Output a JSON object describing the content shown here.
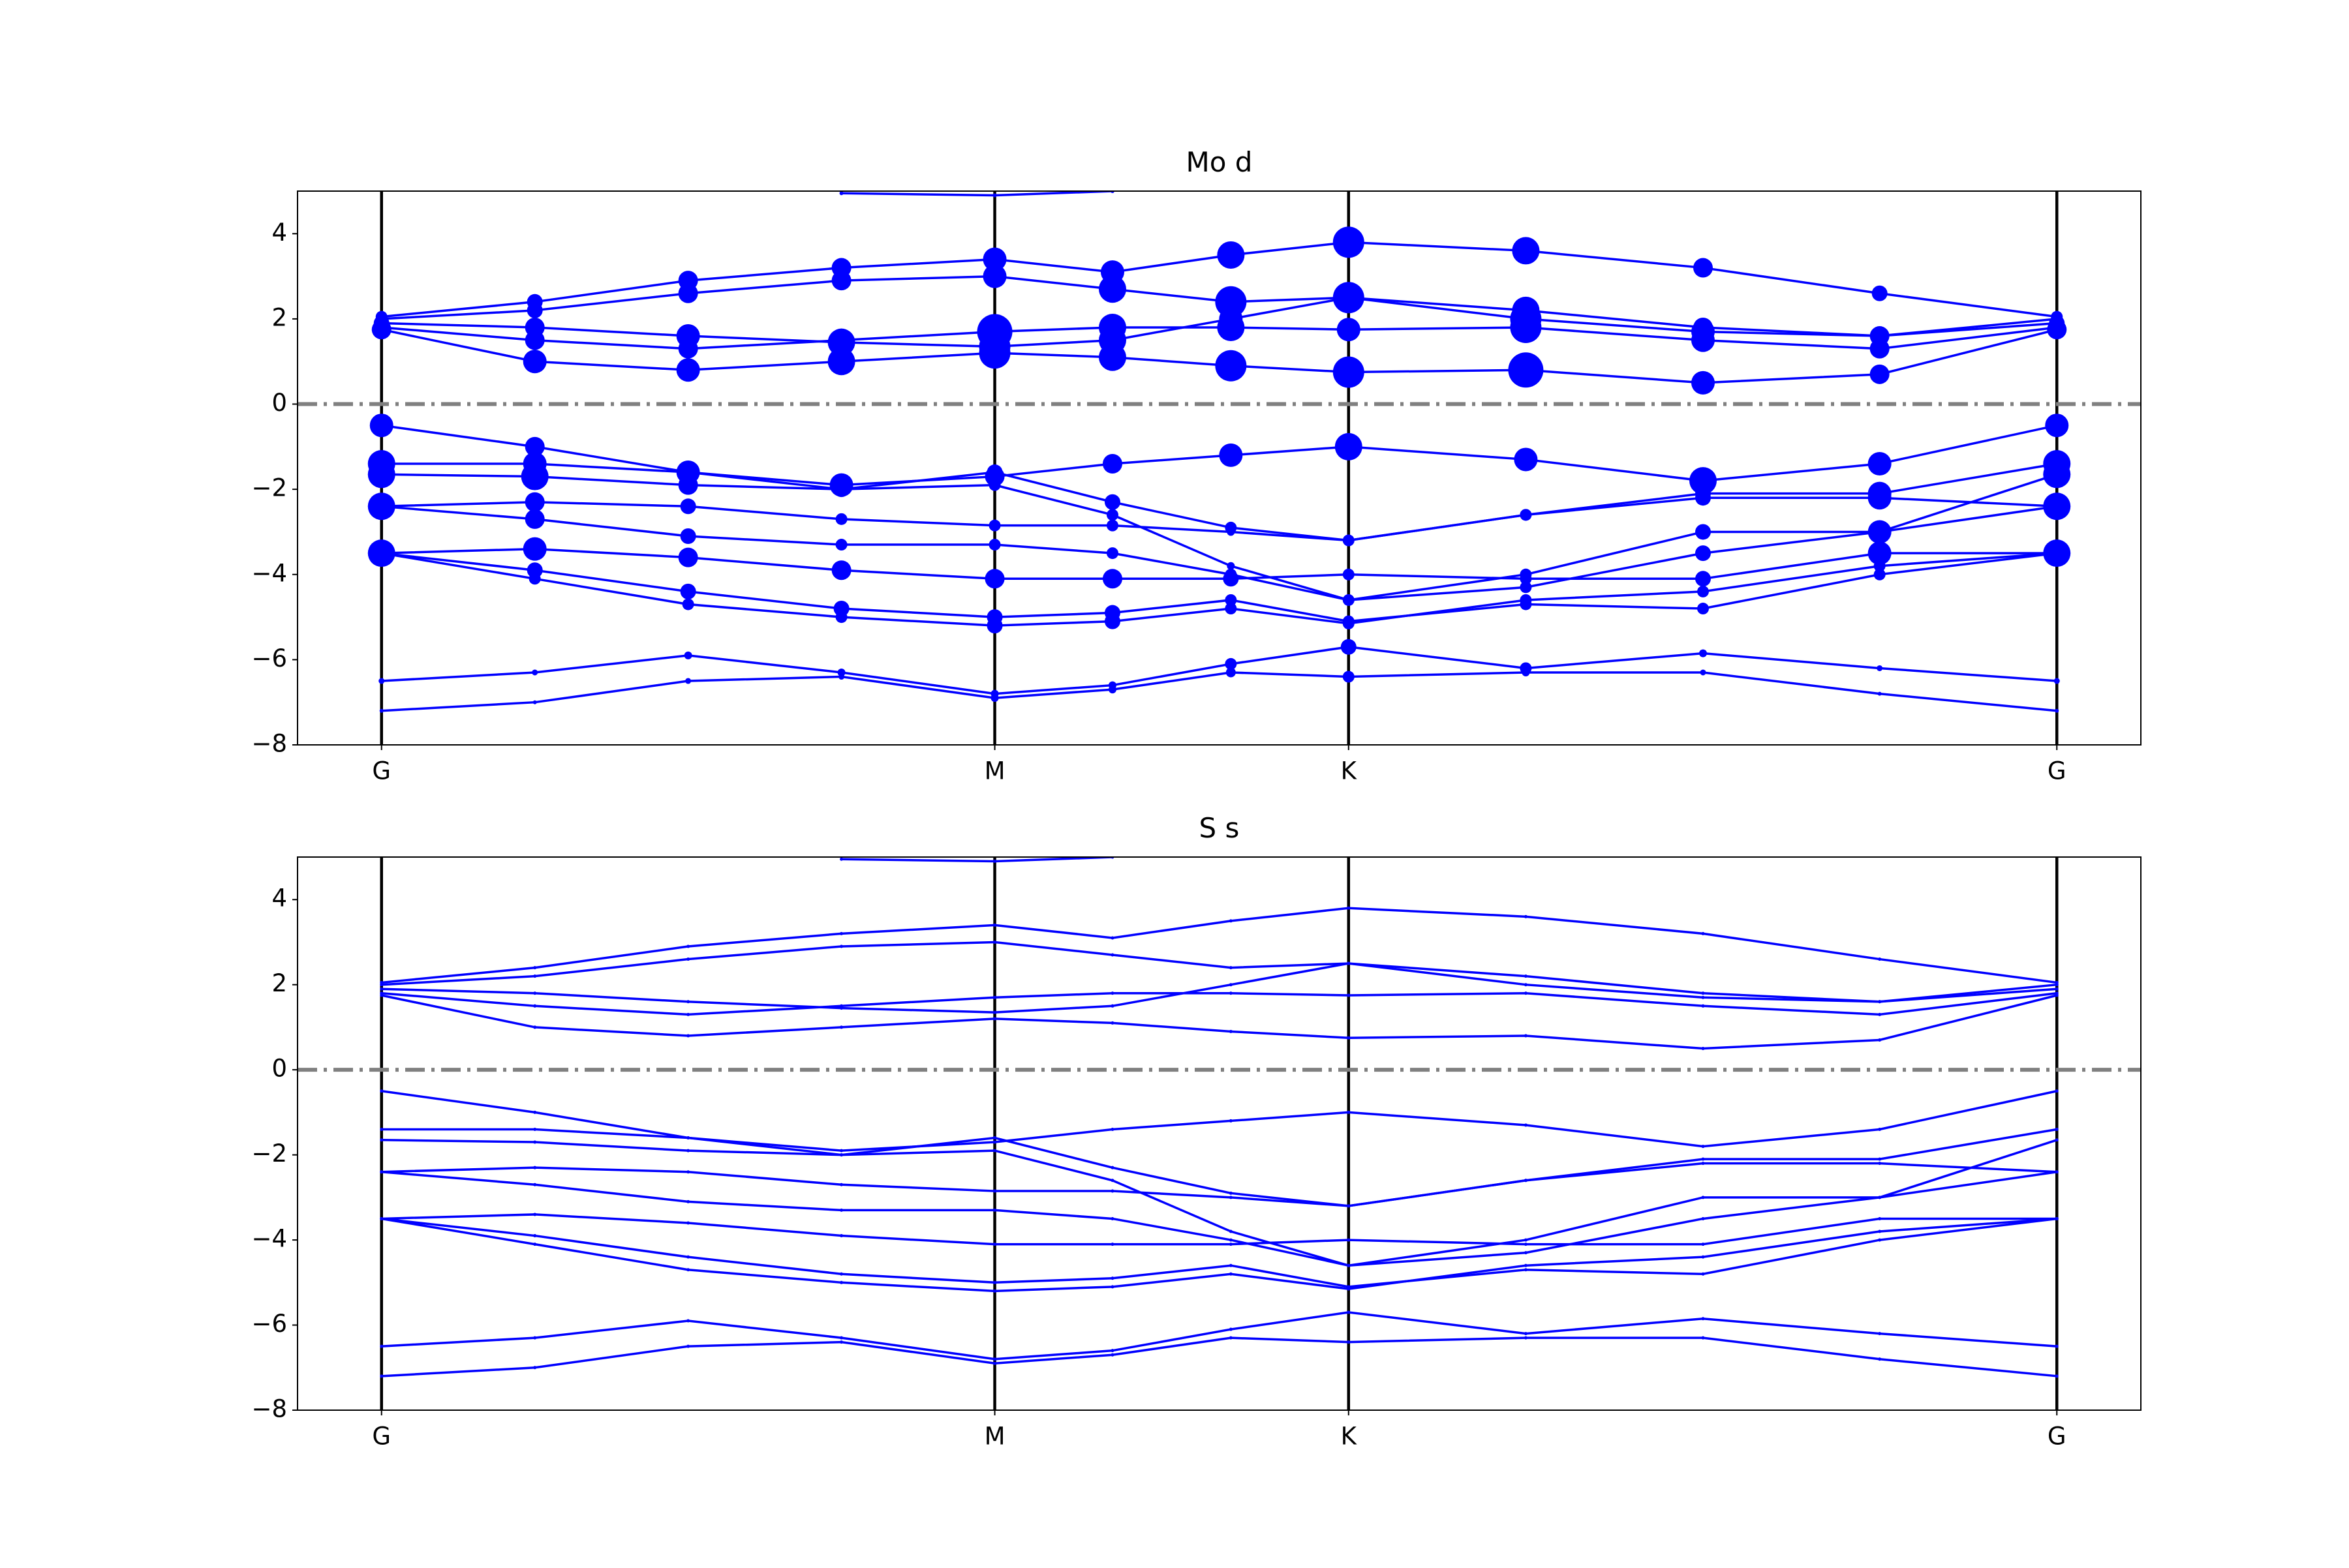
{
  "chart_data": [
    {
      "type": "band",
      "title": "Mo d",
      "color": "#0000ff",
      "x": [
        0,
        0.25,
        0.5,
        0.75,
        1.0,
        1.192,
        1.385,
        1.577,
        1.866,
        2.155,
        2.443,
        2.732
      ],
      "xlim": [
        -0.137,
        2.869
      ],
      "ylim": [
        -8,
        5
      ],
      "xticks": [
        {
          "value": 0,
          "label": "G"
        },
        {
          "value": 1.0,
          "label": "M"
        },
        {
          "value": 1.577,
          "label": "K"
        },
        {
          "value": 2.732,
          "label": "G"
        }
      ],
      "yticks": [
        {
          "value": -8,
          "label": "−8"
        },
        {
          "value": -6,
          "label": "−6"
        },
        {
          "value": -4,
          "label": "−4"
        },
        {
          "value": -2,
          "label": "−2"
        },
        0,
        2,
        4
      ],
      "hline": 0,
      "series": [
        {
          "values": [
            1.75,
            1.0,
            0.8,
            1.0,
            1.2,
            1.1,
            0.9,
            0.75,
            0.8,
            0.5,
            0.7,
            1.75
          ],
          "weights": [
            0.5,
            0.6,
            0.6,
            0.7,
            0.8,
            0.7,
            0.8,
            0.8,
            0.9,
            0.6,
            0.5,
            0.5
          ]
        },
        {
          "values": [
            1.8,
            1.5,
            1.3,
            1.5,
            1.7,
            1.8,
            1.8,
            1.75,
            1.8,
            1.5,
            1.3,
            1.8
          ],
          "weights": [
            0.4,
            0.5,
            0.5,
            0.6,
            0.9,
            0.7,
            0.7,
            0.6,
            0.8,
            0.6,
            0.5,
            0.4
          ]
        },
        {
          "values": [
            1.9,
            1.8,
            1.6,
            1.45,
            1.35,
            1.5,
            2.0,
            2.5,
            2.2,
            1.8,
            1.6,
            1.9
          ],
          "weights": [
            0.4,
            0.5,
            0.6,
            0.7,
            0.8,
            0.7,
            0.6,
            0.6,
            0.7,
            0.5,
            0.4,
            0.4
          ]
        },
        {
          "values": [
            2.0,
            2.2,
            2.6,
            2.9,
            3.0,
            2.7,
            2.4,
            2.5,
            2.0,
            1.7,
            1.6,
            2.0
          ],
          "weights": [
            0.3,
            0.4,
            0.5,
            0.5,
            0.6,
            0.7,
            0.8,
            0.8,
            0.8,
            0.6,
            0.5,
            0.3
          ]
        },
        {
          "values": [
            2.05,
            2.4,
            2.9,
            3.2,
            3.4,
            3.1,
            3.5,
            3.8,
            3.6,
            3.2,
            2.6,
            2.05
          ],
          "weights": [
            0.3,
            0.4,
            0.5,
            0.5,
            0.6,
            0.6,
            0.7,
            0.8,
            0.7,
            0.5,
            0.4,
            0.3
          ]
        },
        {
          "values": [
            null,
            null,
            null,
            4.95,
            4.9,
            5.0,
            null,
            null,
            null,
            null,
            null,
            null
          ],
          "weights": [
            null,
            null,
            null,
            0.1,
            0.1,
            0.1,
            null,
            null,
            null,
            null,
            null,
            null
          ]
        },
        {
          "values": [
            -0.5,
            -1.0,
            -1.6,
            -1.9,
            -1.7,
            -1.4,
            -1.2,
            -1.0,
            -1.3,
            -1.8,
            -1.4,
            -0.5
          ],
          "weights": [
            0.6,
            0.5,
            0.6,
            0.6,
            0.5,
            0.5,
            0.6,
            0.7,
            0.6,
            0.7,
            0.6,
            0.6
          ]
        },
        {
          "values": [
            -1.4,
            -1.4,
            -1.6,
            -2.0,
            -1.6,
            -2.3,
            -2.9,
            -3.2,
            -2.6,
            -2.1,
            -2.1,
            -1.4
          ],
          "weights": [
            0.7,
            0.6,
            0.5,
            0.4,
            0.4,
            0.4,
            0.3,
            0.3,
            0.3,
            0.4,
            0.6,
            0.7
          ]
        },
        {
          "values": [
            -1.65,
            -1.7,
            -1.9,
            -2.0,
            -1.9,
            -2.6,
            -3.8,
            -4.6,
            -4.0,
            -3.0,
            -3.0,
            -1.65
          ],
          "weights": [
            0.7,
            0.7,
            0.5,
            0.3,
            0.3,
            0.3,
            0.2,
            0.2,
            0.3,
            0.4,
            0.6,
            0.7
          ]
        },
        {
          "values": [
            -2.4,
            -2.3,
            -2.4,
            -2.7,
            -2.85,
            -2.85,
            -3.0,
            -3.2,
            -2.6,
            -2.2,
            -2.2,
            -2.4
          ],
          "weights": [
            0.7,
            0.5,
            0.4,
            0.3,
            0.3,
            0.3,
            0.2,
            0.2,
            0.3,
            0.4,
            0.6,
            0.7
          ]
        },
        {
          "values": [
            -2.4,
            -2.7,
            -3.1,
            -3.3,
            -3.3,
            -3.5,
            -4.0,
            -4.6,
            -4.3,
            -3.5,
            -3.0,
            -2.4
          ],
          "weights": [
            0.5,
            0.5,
            0.4,
            0.3,
            0.3,
            0.3,
            0.3,
            0.3,
            0.3,
            0.4,
            0.5,
            0.5
          ]
        },
        {
          "values": [
            -3.5,
            -3.4,
            -3.6,
            -3.9,
            -4.1,
            -4.1,
            -4.1,
            -4.0,
            -4.1,
            -4.1,
            -3.5,
            -3.5
          ],
          "weights": [
            0.7,
            0.6,
            0.5,
            0.5,
            0.5,
            0.5,
            0.4,
            0.3,
            0.3,
            0.4,
            0.6,
            0.7
          ]
        },
        {
          "values": [
            -3.5,
            -3.9,
            -4.4,
            -4.8,
            -5.0,
            -4.9,
            -4.6,
            -5.1,
            -4.7,
            -4.8,
            -4.0,
            -3.5
          ],
          "weights": [
            0.3,
            0.4,
            0.4,
            0.4,
            0.4,
            0.4,
            0.3,
            0.3,
            0.3,
            0.3,
            0.3,
            0.3
          ]
        },
        {
          "values": [
            -3.5,
            -4.1,
            -4.7,
            -5.0,
            -5.2,
            -5.1,
            -4.8,
            -5.15,
            -4.6,
            -4.4,
            -3.8,
            -3.5
          ],
          "weights": [
            0.3,
            0.3,
            0.3,
            0.3,
            0.4,
            0.4,
            0.3,
            0.3,
            0.3,
            0.3,
            0.3,
            0.3
          ]
        },
        {
          "values": [
            -6.5,
            -6.3,
            -5.9,
            -6.3,
            -6.8,
            -6.6,
            -6.1,
            -5.7,
            -6.2,
            -5.85,
            -6.2,
            -6.5
          ],
          "weights": [
            0.15,
            0.15,
            0.2,
            0.2,
            0.2,
            0.2,
            0.3,
            0.4,
            0.3,
            0.2,
            0.15,
            0.15
          ]
        },
        {
          "values": [
            -7.2,
            -7.0,
            -6.5,
            -6.4,
            -6.9,
            -6.7,
            -6.3,
            -6.4,
            -6.3,
            -6.3,
            -6.8,
            -7.2
          ],
          "weights": [
            0.1,
            0.1,
            0.15,
            0.15,
            0.2,
            0.2,
            0.25,
            0.3,
            0.2,
            0.15,
            0.1,
            0.1
          ]
        }
      ]
    },
    {
      "type": "band",
      "title": "S s",
      "color": "#0000ff",
      "x": [
        0,
        0.25,
        0.5,
        0.75,
        1.0,
        1.192,
        1.385,
        1.577,
        1.866,
        2.155,
        2.443,
        2.732
      ],
      "xlim": [
        -0.137,
        2.869
      ],
      "ylim": [
        -8,
        5
      ],
      "xticks": [
        {
          "value": 0,
          "label": "G"
        },
        {
          "value": 1.0,
          "label": "M"
        },
        {
          "value": 1.577,
          "label": "K"
        },
        {
          "value": 2.732,
          "label": "G"
        }
      ],
      "yticks": [
        {
          "value": -8,
          "label": "−8"
        },
        {
          "value": -6,
          "label": "−6"
        },
        {
          "value": -4,
          "label": "−4"
        },
        {
          "value": -2,
          "label": "−2"
        },
        0,
        2,
        4
      ],
      "hline": 0,
      "series": [
        {
          "values": [
            1.75,
            1.0,
            0.8,
            1.0,
            1.2,
            1.1,
            0.9,
            0.75,
            0.8,
            0.5,
            0.7,
            1.75
          ],
          "weights": [
            0.02,
            0.03,
            0.03,
            0.02,
            0.02,
            0.02,
            0.02,
            0.02,
            0.02,
            0.03,
            0.03,
            0.02
          ]
        },
        {
          "values": [
            1.8,
            1.5,
            1.3,
            1.5,
            1.7,
            1.8,
            1.8,
            1.75,
            1.8,
            1.5,
            1.3,
            1.8
          ],
          "weights": [
            0.02,
            0.02,
            0.02,
            0.02,
            0.02,
            0.02,
            0.02,
            0.02,
            0.02,
            0.02,
            0.02,
            0.02
          ]
        },
        {
          "values": [
            1.9,
            1.8,
            1.6,
            1.45,
            1.35,
            1.5,
            2.0,
            2.5,
            2.2,
            1.8,
            1.6,
            1.9
          ],
          "weights": [
            0.02,
            0.02,
            0.02,
            0.02,
            0.02,
            0.02,
            0.02,
            0.02,
            0.02,
            0.02,
            0.02,
            0.02
          ]
        },
        {
          "values": [
            2.0,
            2.2,
            2.6,
            2.9,
            3.0,
            2.7,
            2.4,
            2.5,
            2.0,
            1.7,
            1.6,
            2.0
          ],
          "weights": [
            0.02,
            0.03,
            0.04,
            0.04,
            0.04,
            0.03,
            0.02,
            0.02,
            0.02,
            0.02,
            0.02,
            0.02
          ]
        },
        {
          "values": [
            2.05,
            2.4,
            2.9,
            3.2,
            3.4,
            3.1,
            3.5,
            3.8,
            3.6,
            3.2,
            2.6,
            2.05
          ],
          "weights": [
            0.02,
            0.03,
            0.03,
            0.03,
            0.03,
            0.04,
            0.05,
            0.05,
            0.05,
            0.04,
            0.03,
            0.02
          ]
        },
        {
          "values": [
            null,
            null,
            null,
            4.95,
            4.9,
            5.0,
            null,
            null,
            null,
            null,
            null,
            null
          ],
          "weights": [
            null,
            null,
            null,
            0.05,
            0.05,
            0.05,
            null,
            null,
            null,
            null,
            null,
            null
          ]
        },
        {
          "values": [
            -0.5,
            -1.0,
            -1.6,
            -1.9,
            -1.7,
            -1.4,
            -1.2,
            -1.0,
            -1.3,
            -1.8,
            -1.4,
            -0.5
          ],
          "weights": [
            0.02,
            0.02,
            0.02,
            0.02,
            0.02,
            0.02,
            0.02,
            0.02,
            0.02,
            0.02,
            0.02,
            0.02
          ]
        },
        {
          "values": [
            -1.4,
            -1.4,
            -1.6,
            -2.0,
            -1.6,
            -2.3,
            -2.9,
            -3.2,
            -2.6,
            -2.1,
            -2.1,
            -1.4
          ],
          "weights": [
            0.02,
            0.02,
            0.02,
            0.03,
            0.03,
            0.03,
            0.04,
            0.04,
            0.03,
            0.02,
            0.02,
            0.02
          ]
        },
        {
          "values": [
            -1.65,
            -1.7,
            -1.9,
            -2.0,
            -1.9,
            -2.6,
            -3.8,
            -4.6,
            -4.0,
            -3.0,
            -3.0,
            -1.65
          ],
          "weights": [
            0.02,
            0.02,
            0.03,
            0.03,
            0.03,
            0.03,
            0.03,
            0.03,
            0.03,
            0.02,
            0.02,
            0.02
          ]
        },
        {
          "values": [
            -2.4,
            -2.3,
            -2.4,
            -2.7,
            -2.85,
            -2.85,
            -3.0,
            -3.2,
            -2.6,
            -2.2,
            -2.2,
            -2.4
          ],
          "weights": [
            0.02,
            0.02,
            0.03,
            0.04,
            0.04,
            0.04,
            0.03,
            0.03,
            0.02,
            0.02,
            0.02,
            0.02
          ]
        },
        {
          "values": [
            -2.4,
            -2.7,
            -3.1,
            -3.3,
            -3.3,
            -3.5,
            -4.0,
            -4.6,
            -4.3,
            -3.5,
            -3.0,
            -2.4
          ],
          "weights": [
            0.02,
            0.02,
            0.03,
            0.03,
            0.03,
            0.03,
            0.03,
            0.03,
            0.03,
            0.02,
            0.02,
            0.02
          ]
        },
        {
          "values": [
            -3.5,
            -3.4,
            -3.6,
            -3.9,
            -4.1,
            -4.1,
            -4.1,
            -4.0,
            -4.1,
            -4.1,
            -3.5,
            -3.5
          ],
          "weights": [
            0.02,
            0.02,
            0.02,
            0.02,
            0.02,
            0.02,
            0.02,
            0.02,
            0.02,
            0.02,
            0.02,
            0.02
          ]
        },
        {
          "values": [
            -3.5,
            -3.9,
            -4.4,
            -4.8,
            -5.0,
            -4.9,
            -4.6,
            -5.1,
            -4.7,
            -4.8,
            -4.0,
            -3.5
          ],
          "weights": [
            0.02,
            0.03,
            0.04,
            0.05,
            0.05,
            0.05,
            0.04,
            0.04,
            0.04,
            0.03,
            0.03,
            0.02
          ]
        },
        {
          "values": [
            -3.5,
            -4.1,
            -4.7,
            -5.0,
            -5.2,
            -5.1,
            -4.8,
            -5.15,
            -4.6,
            -4.4,
            -3.8,
            -3.5
          ],
          "weights": [
            0.02,
            0.03,
            0.04,
            0.05,
            0.05,
            0.05,
            0.04,
            0.03,
            0.03,
            0.03,
            0.02,
            0.02
          ]
        },
        {
          "values": [
            -6.5,
            -6.3,
            -5.9,
            -6.3,
            -6.8,
            -6.6,
            -6.1,
            -5.7,
            -6.2,
            -5.85,
            -6.2,
            -6.5
          ],
          "weights": [
            0.03,
            0.03,
            0.02,
            0.02,
            0.02,
            0.02,
            0.02,
            0.02,
            0.02,
            0.02,
            0.03,
            0.03
          ]
        },
        {
          "values": [
            -7.2,
            -7.0,
            -6.5,
            -6.4,
            -6.9,
            -6.7,
            -6.3,
            -6.4,
            -6.3,
            -6.3,
            -6.8,
            -7.2
          ],
          "weights": [
            0.02,
            0.02,
            0.02,
            0.02,
            0.02,
            0.02,
            0.02,
            0.02,
            0.02,
            0.02,
            0.02,
            0.02
          ]
        }
      ]
    }
  ]
}
